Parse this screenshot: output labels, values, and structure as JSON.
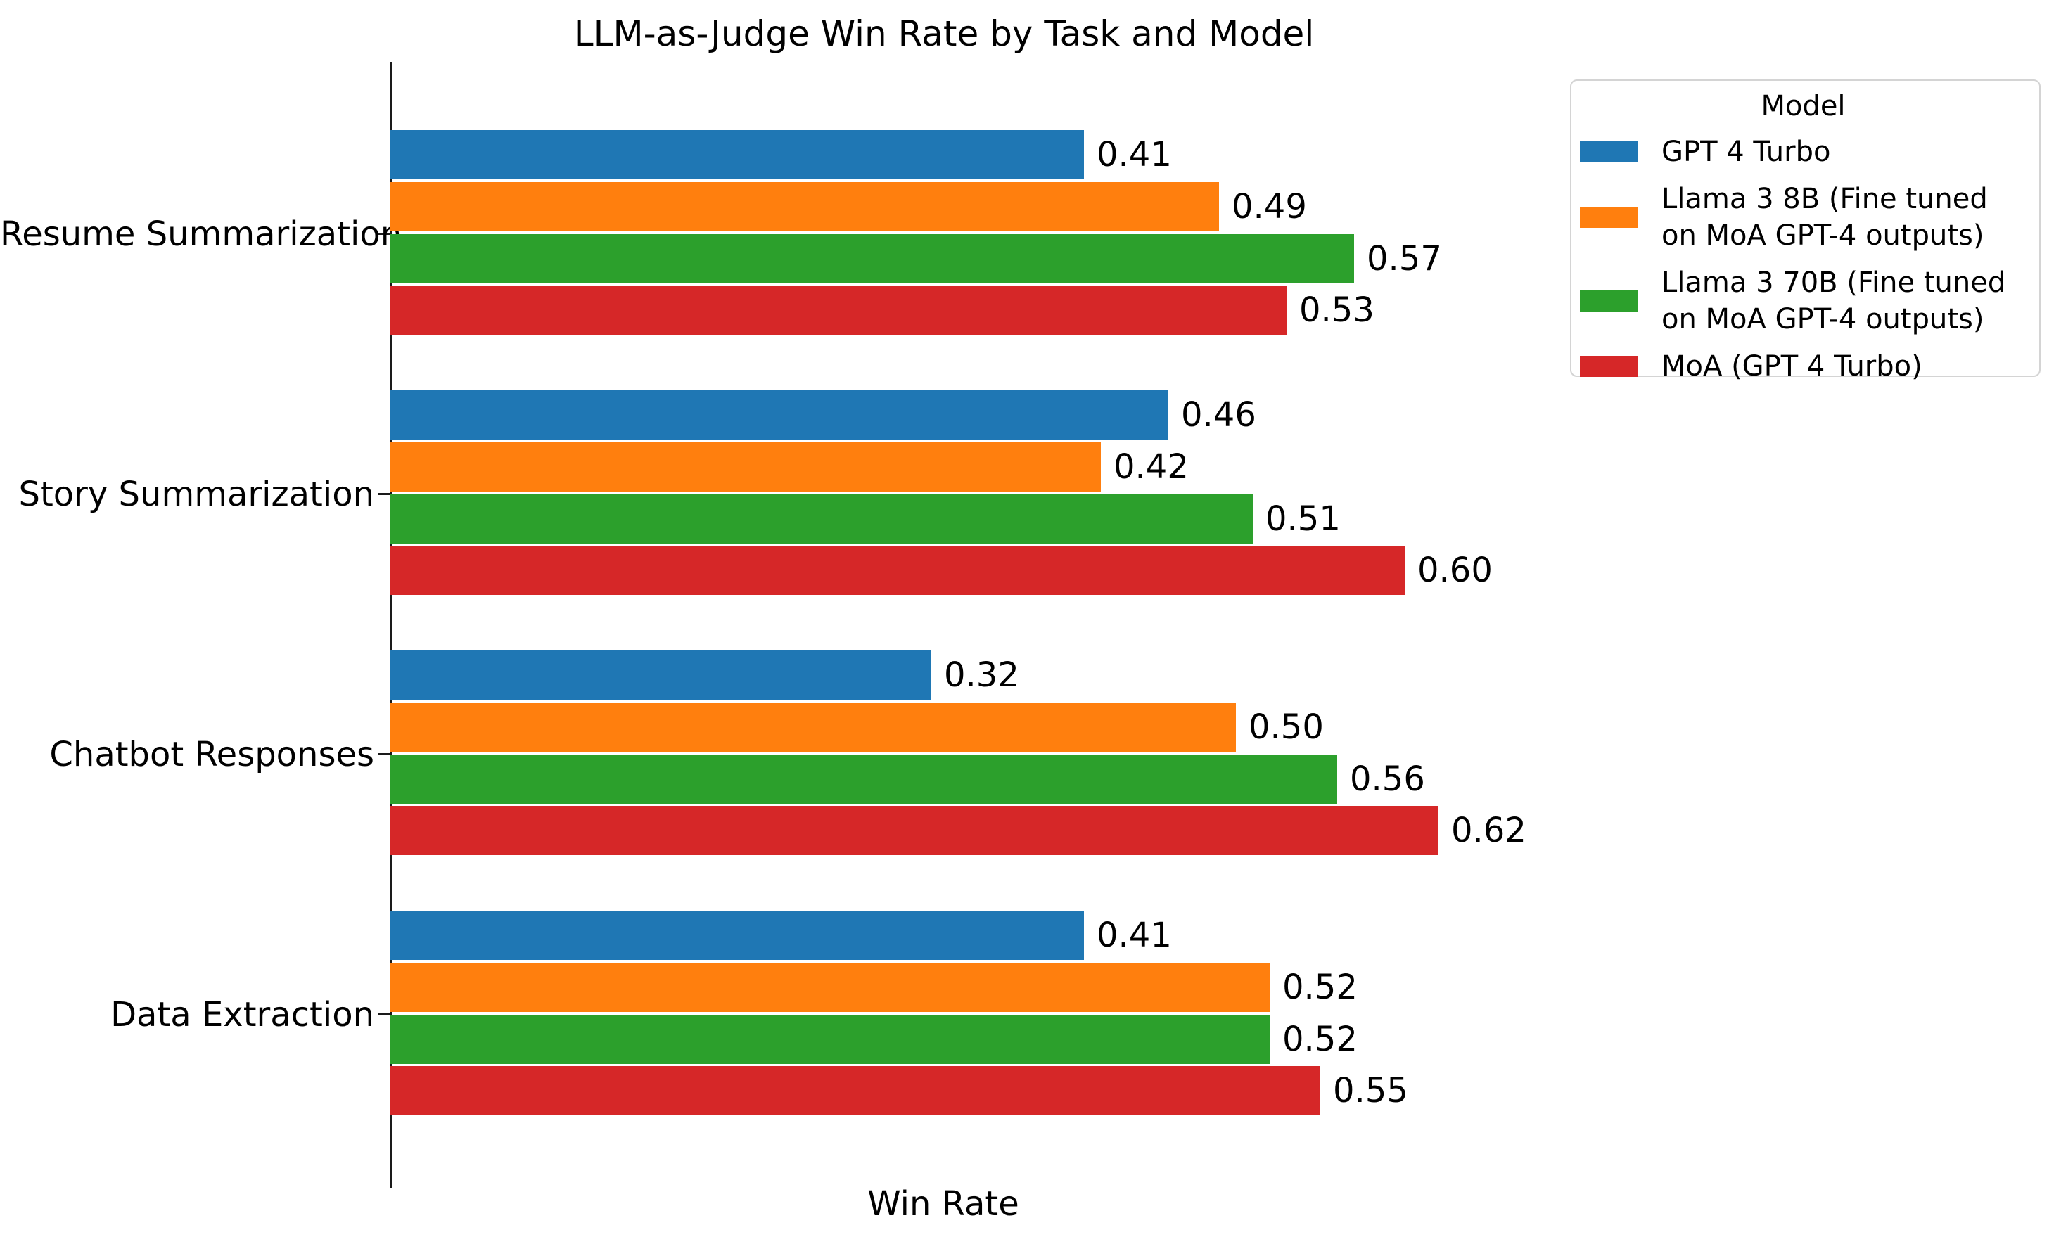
{
  "title": "LLM-as-Judge Win Rate by Task and Model",
  "xlabel": "Win Rate",
  "legend": {
    "title": "Model"
  },
  "chart_data": {
    "type": "bar",
    "orientation": "horizontal",
    "title": "LLM-as-Judge Win Rate by Task and Model",
    "xlabel": "Win Rate",
    "ylabel": "",
    "xlim": [
      0,
      0.65
    ],
    "grid": false,
    "legend_position": "upper right, outside plot",
    "legend_title": "Model",
    "value_label_format": "0.00",
    "categories": [
      "Resume Summarization",
      "Story Summarization",
      "Chatbot Responses",
      "Data Extraction"
    ],
    "series": [
      {
        "name": "GPT 4 Turbo",
        "legend_label": "GPT 4 Turbo",
        "color": "#1f77b4",
        "values": [
          0.41,
          0.46,
          0.32,
          0.41
        ]
      },
      {
        "name": "Llama 3 8B (Fine tuned on MoA GPT-4 outputs)",
        "legend_label": "Llama 3 8B (Fine tuned\non MoA GPT-4 outputs)",
        "color": "#ff7f0e",
        "values": [
          0.49,
          0.42,
          0.5,
          0.52
        ]
      },
      {
        "name": "Llama 3 70B (Fine tuned on MoA GPT-4 outputs)",
        "legend_label": "Llama 3 70B (Fine tuned\non MoA GPT-4 outputs)",
        "color": "#2ca02c",
        "values": [
          0.57,
          0.51,
          0.56,
          0.52
        ]
      },
      {
        "name": "MoA (GPT 4 Turbo)",
        "legend_label": "MoA (GPT 4 Turbo)",
        "color": "#d62728",
        "values": [
          0.53,
          0.6,
          0.62,
          0.55
        ]
      }
    ]
  }
}
